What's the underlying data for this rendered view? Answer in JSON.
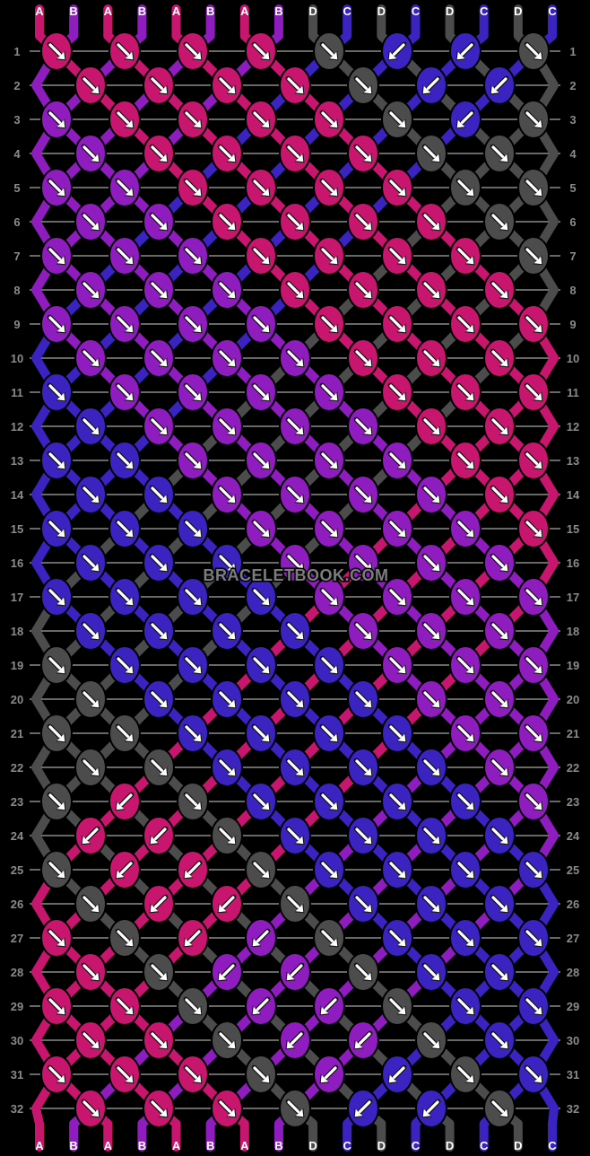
{
  "watermark": "BRACELETBOOK.COM",
  "palette": {
    "pink": "#C8156E",
    "purple": "#8F1CBE",
    "blue": "#3A23C0",
    "gray": "#4C4C4C"
  },
  "code_colors": {
    "P": "pink",
    "V": "purple",
    "U": "blue",
    "G": "gray"
  },
  "arrow_icons": {
    "f": "↘",
    "b": "↙"
  },
  "strand_colors": {
    "A": "pink",
    "B": "purple",
    "C": "blue",
    "D": "gray"
  },
  "strand_labels": {
    "top": [
      "A",
      "B",
      "A",
      "B",
      "A",
      "B",
      "A",
      "B",
      "D",
      "C",
      "D",
      "C",
      "D",
      "C",
      "D",
      "C"
    ],
    "bottom": [
      "A",
      "B",
      "A",
      "B",
      "A",
      "B",
      "A",
      "B",
      "D",
      "C",
      "D",
      "C",
      "D",
      "C",
      "D",
      "C"
    ]
  },
  "row_count": 32,
  "row_numbers": [
    1,
    2,
    3,
    4,
    5,
    6,
    7,
    8,
    9,
    10,
    11,
    12,
    13,
    14,
    15,
    16,
    17,
    18,
    19,
    20,
    21,
    22,
    23,
    24,
    25,
    26,
    27,
    28,
    29,
    30,
    31,
    32
  ],
  "rows": [
    [
      "Pf",
      "Pf",
      "Pf",
      "Pf",
      "Gf",
      "Ub",
      "Ub",
      "Gf"
    ],
    [
      "Pf",
      "Pf",
      "Pf",
      "Pf",
      "Gf",
      "Ub",
      "Ub"
    ],
    [
      "Vf",
      "Pf",
      "Pf",
      "Pf",
      "Pf",
      "Gf",
      "Ub",
      "Gf"
    ],
    [
      "Vf",
      "Pf",
      "Pf",
      "Pf",
      "Pf",
      "Gf",
      "Gf"
    ],
    [
      "Vf",
      "Vf",
      "Pf",
      "Pf",
      "Pf",
      "Pf",
      "Gf",
      "Gf"
    ],
    [
      "Vf",
      "Vf",
      "Pf",
      "Pf",
      "Pf",
      "Pf",
      "Gf"
    ],
    [
      "Vf",
      "Vf",
      "Vf",
      "Pf",
      "Pf",
      "Pf",
      "Pf",
      "Gf"
    ],
    [
      "Vf",
      "Vf",
      "Vf",
      "Pf",
      "Pf",
      "Pf",
      "Pf"
    ],
    [
      "Vf",
      "Vf",
      "Vf",
      "Vf",
      "Pf",
      "Pf",
      "Pf",
      "Pf"
    ],
    [
      "Vf",
      "Vf",
      "Vf",
      "Vf",
      "Pf",
      "Pf",
      "Pf"
    ],
    [
      "Uf",
      "Vf",
      "Vf",
      "Vf",
      "Vf",
      "Pf",
      "Pf",
      "Pf"
    ],
    [
      "Uf",
      "Vf",
      "Vf",
      "Vf",
      "Vf",
      "Pf",
      "Pf"
    ],
    [
      "Uf",
      "Uf",
      "Vf",
      "Vf",
      "Vf",
      "Vf",
      "Pf",
      "Pf"
    ],
    [
      "Uf",
      "Uf",
      "Vf",
      "Vf",
      "Vf",
      "Vf",
      "Pf"
    ],
    [
      "Uf",
      "Uf",
      "Uf",
      "Vf",
      "Vf",
      "Vf",
      "Vf",
      "Pf"
    ],
    [
      "Uf",
      "Uf",
      "Uf",
      "Vf",
      "Vf",
      "Vf",
      "Vf"
    ],
    [
      "Uf",
      "Uf",
      "Uf",
      "Uf",
      "Vf",
      "Vf",
      "Vf",
      "Vf"
    ],
    [
      "Uf",
      "Uf",
      "Uf",
      "Uf",
      "Vf",
      "Vf",
      "Vf"
    ],
    [
      "Gf",
      "Uf",
      "Uf",
      "Uf",
      "Uf",
      "Vf",
      "Vf",
      "Vf"
    ],
    [
      "Gf",
      "Uf",
      "Uf",
      "Uf",
      "Uf",
      "Vf",
      "Vf"
    ],
    [
      "Gf",
      "Gf",
      "Uf",
      "Uf",
      "Uf",
      "Uf",
      "Vf",
      "Vf"
    ],
    [
      "Gf",
      "Gf",
      "Uf",
      "Uf",
      "Uf",
      "Uf",
      "Vf"
    ],
    [
      "Gf",
      "Pb",
      "Gf",
      "Uf",
      "Uf",
      "Uf",
      "Uf",
      "Vf"
    ],
    [
      "Pb",
      "Pb",
      "Gf",
      "Uf",
      "Uf",
      "Uf",
      "Uf"
    ],
    [
      "Gf",
      "Pb",
      "Pb",
      "Gf",
      "Uf",
      "Uf",
      "Uf",
      "Uf"
    ],
    [
      "Gf",
      "Pb",
      "Pb",
      "Gf",
      "Uf",
      "Uf",
      "Uf"
    ],
    [
      "Pf",
      "Gf",
      "Pb",
      "Vb",
      "Gf",
      "Uf",
      "Uf",
      "Uf"
    ],
    [
      "Pf",
      "Gf",
      "Vb",
      "Vb",
      "Gf",
      "Uf",
      "Uf"
    ],
    [
      "Pf",
      "Pf",
      "Gf",
      "Vb",
      "Vb",
      "Gf",
      "Uf",
      "Uf"
    ],
    [
      "Pf",
      "Pf",
      "Gf",
      "Vb",
      "Vb",
      "Gf",
      "Uf"
    ],
    [
      "Pf",
      "Pf",
      "Pf",
      "Gf",
      "Vb",
      "Ub",
      "Gf",
      "Uf"
    ],
    [
      "Pf",
      "Pf",
      "Pf",
      "Gf",
      "Ub",
      "Ub",
      "Gf"
    ]
  ]
}
